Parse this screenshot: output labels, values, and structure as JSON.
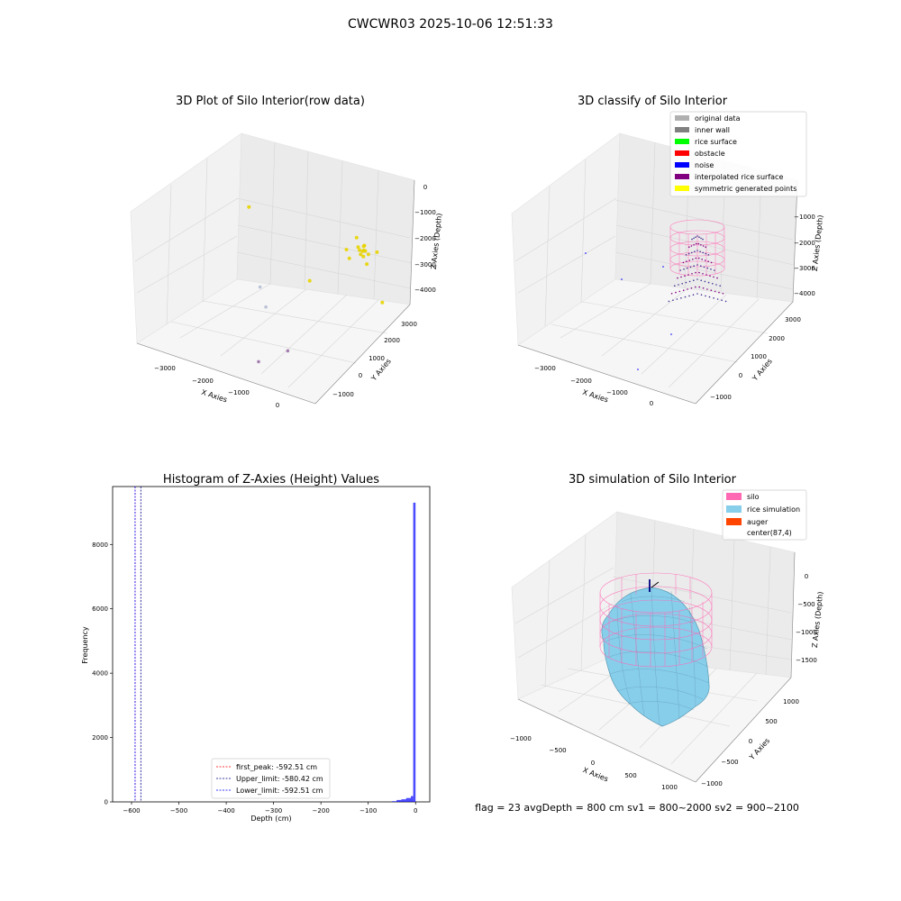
{
  "figure_title": "CWCWR03 2025-10-06 12:51:33",
  "footer_text": "flag = 23  avgDepth = 800 cm  sv1 = 800~2000  sv2 = 900~2100",
  "colors": {
    "raw_points": "#e8d400",
    "silo": "#ff69b4",
    "rice": "#87ceeb",
    "auger": "#ff4500",
    "histogram": "#0000ff",
    "first_peak": "#ff0000",
    "upper_limit": "#00008b",
    "lower_limit": "#0000ff"
  },
  "chart_data": [
    {
      "type": "scatter",
      "title": "3D Plot of Silo Interior(row data)",
      "xlabel": "X Axies",
      "ylabel": "Y Axies",
      "zlabel": "Z Axies (Depth)",
      "xticks": [
        "−3000",
        "−2000",
        "−1000",
        "0"
      ],
      "yticks": [
        "−1000",
        "0",
        "1000",
        "2000",
        "3000"
      ],
      "zticks": [
        "0",
        "−1000",
        "−2000",
        "−3000",
        "−4000"
      ],
      "xlim": [
        -3500,
        500
      ],
      "ylim": [
        -1500,
        3500
      ],
      "zlim": [
        -4500,
        500
      ],
      "grid": true,
      "points": [
        {
          "x": -150,
          "y": 2600,
          "z": -2000
        },
        {
          "x": -200,
          "y": 2650,
          "z": -2100
        },
        {
          "x": -100,
          "y": 2550,
          "z": -1950
        },
        {
          "x": -250,
          "y": 2600,
          "z": -2050
        },
        {
          "x": -180,
          "y": 2700,
          "z": -1900
        },
        {
          "x": -120,
          "y": 2500,
          "z": -2150
        },
        {
          "x": -300,
          "y": 2650,
          "z": -2000
        },
        {
          "x": -50,
          "y": 2600,
          "z": -2100
        },
        {
          "x": -220,
          "y": 2750,
          "z": -2000
        },
        {
          "x": -160,
          "y": 2450,
          "z": -2050
        },
        {
          "x": -400,
          "y": 2800,
          "z": -1800
        },
        {
          "x": 0,
          "y": 2400,
          "z": -2300
        },
        {
          "x": -500,
          "y": 2500,
          "z": -2100
        },
        {
          "x": 100,
          "y": 2700,
          "z": -2000
        },
        {
          "x": -350,
          "y": 2300,
          "z": -2200
        },
        {
          "x": -2600,
          "y": 2300,
          "z": -1500
        },
        {
          "x": -1800,
          "y": 1000,
          "z": -3200
        },
        {
          "x": -1500,
          "y": 600,
          "z": -3500
        },
        {
          "x": -900,
          "y": 1500,
          "z": -2800
        },
        {
          "x": 600,
          "y": 1800,
          "z": -3000
        },
        {
          "x": -500,
          "y": -600,
          "z": -3700
        },
        {
          "x": -900,
          "y": -1200,
          "z": -3900
        }
      ]
    },
    {
      "type": "scatter",
      "title": "3D classify of Silo Interior",
      "xlabel": "X Axies",
      "ylabel": "Y Axies",
      "zlabel": "Z Axies (Depth)",
      "xticks": [
        "−3000",
        "−2000",
        "−1000",
        "0"
      ],
      "yticks": [
        "−1000",
        "0",
        "1000",
        "2000",
        "3000"
      ],
      "zticks": [
        "−1000",
        "−2000",
        "−3000",
        "−4000"
      ],
      "grid": true,
      "legend_position": "top-right",
      "legend": [
        {
          "label": "original data",
          "color": "#b0b0b0"
        },
        {
          "label": "inner wall",
          "color": "#808080"
        },
        {
          "label": "rice surface",
          "color": "#00ff00"
        },
        {
          "label": "obstacle",
          "color": "#ff0000"
        },
        {
          "label": "noise",
          "color": "#0000ff"
        },
        {
          "label": "interpolated rice surface",
          "color": "#800080"
        },
        {
          "label": "symmetric generated points",
          "color": "#ffff00"
        }
      ]
    },
    {
      "type": "bar",
      "title": "Histogram of Z-Axies (Height) Values",
      "xlabel": "Depth (cm)",
      "ylabel": "Frequency",
      "xticks": [
        "−600",
        "−500",
        "−400",
        "−300",
        "−200",
        "−100",
        "0"
      ],
      "yticks": [
        "0",
        "2000",
        "4000",
        "6000",
        "8000"
      ],
      "xlim": [
        -640,
        30
      ],
      "ylim": [
        0,
        9800
      ],
      "bins": [
        {
          "x0": -50,
          "x1": -40,
          "count": 20
        },
        {
          "x0": -40,
          "x1": -30,
          "count": 60
        },
        {
          "x0": -30,
          "x1": -20,
          "count": 80
        },
        {
          "x0": -20,
          "x1": -10,
          "count": 120
        },
        {
          "x0": -10,
          "x1": -5,
          "count": 180
        },
        {
          "x0": -5,
          "x1": 0,
          "count": 9300
        }
      ],
      "vlines": [
        {
          "label": "first_peak: -592.51 cm",
          "x": -592.51,
          "color": "#ff0000"
        },
        {
          "label": "Upper_limit: -580.42 cm",
          "x": -580.42,
          "color": "#00008b"
        },
        {
          "label": "Lower_limit: -592.51 cm",
          "x": -592.51,
          "color": "#0000ff"
        }
      ],
      "legend_position": "lower-center"
    },
    {
      "type": "area",
      "title": "3D simulation of Silo Interior",
      "xlabel": "X Axies",
      "ylabel": "Y Axies",
      "zlabel": "Z Axies (Depth)",
      "xticks": [
        "−1000",
        "−500",
        "0",
        "500",
        "1000"
      ],
      "yticks": [
        "−1000",
        "−500",
        "0",
        "500",
        "1000"
      ],
      "zticks": [
        "0",
        "−500",
        "−1000",
        "−1500"
      ],
      "grid": true,
      "legend_position": "top-right",
      "legend": [
        {
          "label": "silo",
          "color": "#ff69b4"
        },
        {
          "label": "rice simulation",
          "color": "#87ceeb"
        },
        {
          "label": "auger",
          "color": "#ff4500"
        },
        {
          "label": "center(87,4)",
          "color": ""
        }
      ]
    }
  ]
}
